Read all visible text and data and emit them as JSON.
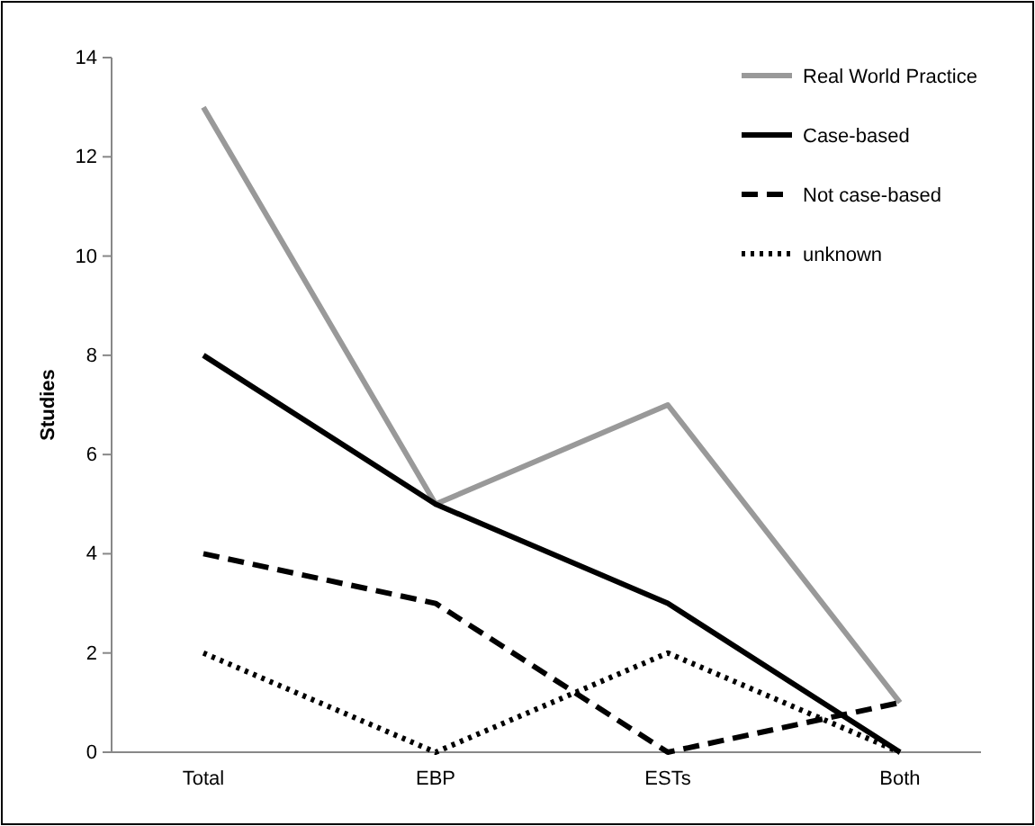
{
  "chart_data": {
    "type": "line",
    "ylabel": "Studies",
    "categories": [
      "Total",
      "EBP",
      "ESTs",
      "Both"
    ],
    "ylim": [
      0,
      14
    ],
    "yticks": [
      0,
      2,
      4,
      6,
      8,
      10,
      12,
      14
    ],
    "grid": false,
    "legend": "top right",
    "marker": "none",
    "series": [
      {
        "name": "Real World Practice",
        "color": "#999999",
        "line_style": "solid",
        "values": [
          13,
          5,
          7,
          1
        ]
      },
      {
        "name": "Case-based",
        "color": "#000000",
        "line_style": "solid",
        "values": [
          8,
          5,
          3,
          0
        ]
      },
      {
        "name": "Not case-based",
        "color": "#000000",
        "line_style": "dashed",
        "values": [
          4,
          3,
          0,
          1
        ]
      },
      {
        "name": "unknown",
        "color": "#000000",
        "line_style": "dotted",
        "values": [
          2,
          0,
          2,
          0
        ]
      }
    ]
  }
}
